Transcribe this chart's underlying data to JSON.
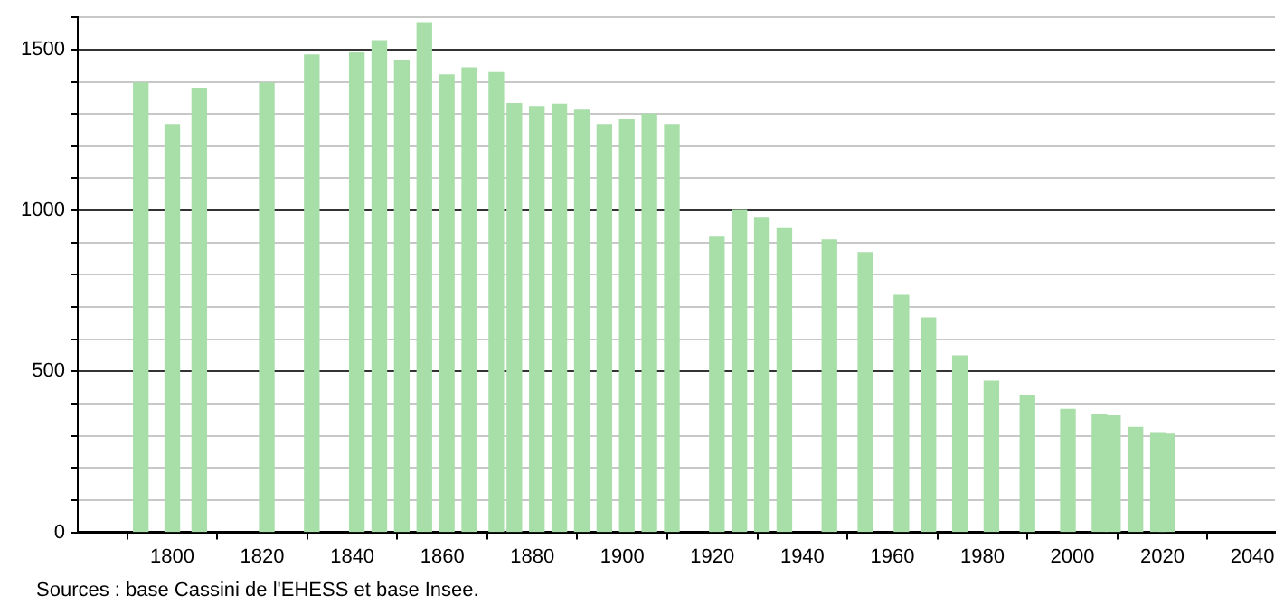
{
  "chart_data": {
    "type": "bar",
    "x": [
      1793,
      1800,
      1806,
      1821,
      1831,
      1841,
      1846,
      1851,
      1856,
      1861,
      1866,
      1872,
      1876,
      1881,
      1886,
      1891,
      1896,
      1901,
      1906,
      1911,
      1921,
      1926,
      1931,
      1936,
      1946,
      1954,
      1962,
      1968,
      1975,
      1982,
      1990,
      1999,
      2006,
      2009,
      2014,
      2019,
      2021
    ],
    "values": [
      1396,
      1267,
      1378,
      1396,
      1483,
      1489,
      1527,
      1467,
      1583,
      1421,
      1443,
      1428,
      1332,
      1323,
      1330,
      1312,
      1267,
      1282,
      1299,
      1267,
      919,
      1000,
      978,
      946,
      908,
      869,
      736,
      666,
      548,
      470,
      424,
      382,
      365,
      362,
      326,
      310,
      305
    ],
    "color": "#a8dea8",
    "xlim": [
      1779,
      2045
    ],
    "xticks": [
      1800,
      1820,
      1840,
      1860,
      1880,
      1900,
      1920,
      1940,
      1960,
      1980,
      2000,
      2020,
      2040
    ],
    "ylim": [
      0,
      1600
    ],
    "yticks": [
      0,
      {
        "value": 100,
        "label": null
      },
      {
        "value": 200,
        "label": null
      },
      {
        "value": 300,
        "label": null
      },
      {
        "value": 400,
        "label": null
      },
      500,
      {
        "value": 600,
        "label": null
      },
      {
        "value": 700,
        "label": null
      },
      {
        "value": 800,
        "label": null
      },
      {
        "value": 900,
        "label": null
      },
      1000,
      {
        "value": 1100,
        "label": null
      },
      {
        "value": 1200,
        "label": null
      },
      {
        "value": 1300,
        "label": null
      },
      {
        "value": 1400,
        "label": null
      },
      1500,
      {
        "value": 1600,
        "label": null
      }
    ],
    "grid": "y",
    "legend": false,
    "annotations": [
      "Sources : base Cassini de l'EHESS et base Insee."
    ]
  }
}
